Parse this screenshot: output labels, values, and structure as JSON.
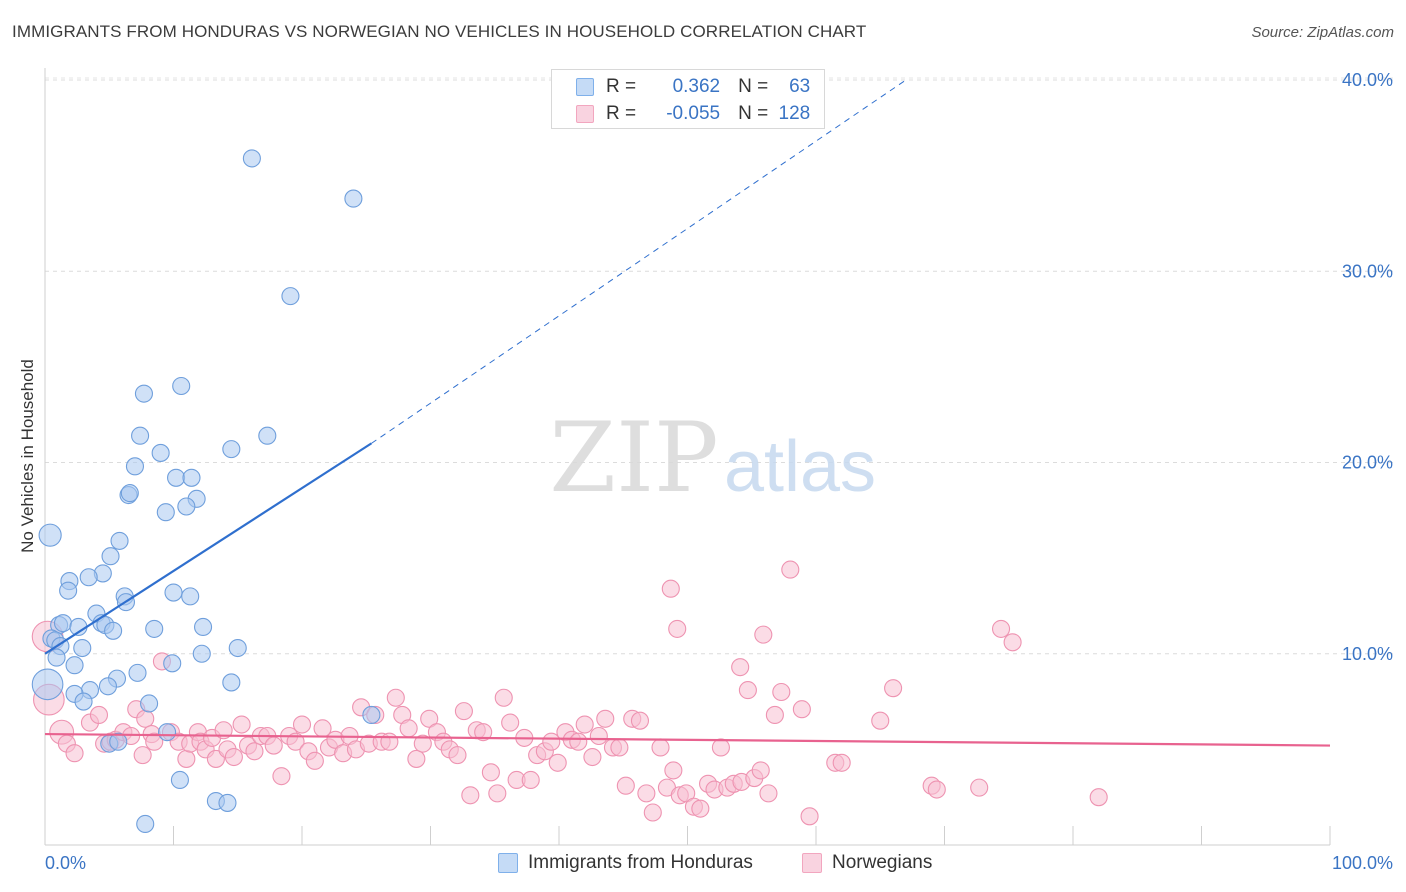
{
  "title": "IMMIGRANTS FROM HONDURAS VS NORWEGIAN NO VEHICLES IN HOUSEHOLD CORRELATION CHART",
  "source": "Source: ZipAtlas.com",
  "watermark": {
    "zip": "ZIP",
    "atlas": "atlas"
  },
  "legend_top": {
    "rows": [
      {
        "r_label": "R =",
        "r_value": "0.362",
        "n_label": "N =",
        "n_value": "63",
        "color": "#7fb0ea"
      },
      {
        "r_label": "R =",
        "r_value": "-0.055",
        "n_label": "N =",
        "n_value": "128",
        "color": "#f2a6bf"
      }
    ]
  },
  "legend_bottom": [
    {
      "label": "Immigrants from Honduras",
      "color": "#7fb0ea"
    },
    {
      "label": "Norwegians",
      "color": "#f2a6bf"
    }
  ],
  "chart_data": {
    "type": "scatter",
    "title": "IMMIGRANTS FROM HONDURAS VS NORWEGIAN NO VEHICLES IN HOUSEHOLD CORRELATION CHART",
    "xlabel": "",
    "ylabel": "No Vehicles in Household",
    "xlim": [
      0,
      100
    ],
    "ylim": [
      0,
      40
    ],
    "x_tick_labels": [
      "0.0%",
      "100.0%"
    ],
    "y_tick_labels": [
      "10.0%",
      "20.0%",
      "30.0%",
      "40.0%"
    ],
    "y_ticks": [
      10,
      20,
      30,
      40
    ],
    "grid": true,
    "legend_position": "bottom",
    "colors": {
      "blue_fill": "#a9c9f1",
      "blue_stroke": "#6f9fdc",
      "blue_line": "#2f6fce",
      "pink_fill": "#f7c0d1",
      "pink_stroke": "#ee93b1",
      "pink_line": "#e8628f"
    },
    "series": [
      {
        "name": "Immigrants from Honduras",
        "points": [
          [
            16.1,
            35.9
          ],
          [
            24.0,
            33.8
          ],
          [
            19.1,
            28.7
          ],
          [
            7.7,
            23.6
          ],
          [
            10.6,
            24.0
          ],
          [
            7.4,
            21.4
          ],
          [
            17.3,
            21.4
          ],
          [
            14.5,
            20.7
          ],
          [
            9.0,
            20.5
          ],
          [
            7.0,
            19.8
          ],
          [
            10.2,
            19.2
          ],
          [
            11.4,
            19.2
          ],
          [
            6.5,
            18.3
          ],
          [
            6.6,
            18.4
          ],
          [
            11.8,
            18.1
          ],
          [
            11.0,
            17.7
          ],
          [
            9.4,
            17.4
          ],
          [
            5.8,
            15.9
          ],
          [
            5.1,
            15.1
          ],
          [
            0.4,
            16.2
          ],
          [
            4.5,
            14.2
          ],
          [
            3.4,
            14.0
          ],
          [
            1.9,
            13.8
          ],
          [
            1.8,
            13.3
          ],
          [
            6.2,
            13.0
          ],
          [
            10.0,
            13.2
          ],
          [
            6.3,
            12.7
          ],
          [
            11.3,
            13.0
          ],
          [
            4.0,
            12.1
          ],
          [
            1.1,
            11.5
          ],
          [
            1.4,
            11.6
          ],
          [
            2.6,
            11.4
          ],
          [
            4.4,
            11.6
          ],
          [
            4.7,
            11.5
          ],
          [
            8.5,
            11.3
          ],
          [
            12.3,
            11.4
          ],
          [
            0.5,
            10.8
          ],
          [
            0.8,
            10.7
          ],
          [
            5.3,
            11.2
          ],
          [
            1.2,
            10.4
          ],
          [
            2.9,
            10.3
          ],
          [
            15.0,
            10.3
          ],
          [
            12.2,
            10.0
          ],
          [
            0.9,
            9.8
          ],
          [
            2.3,
            9.4
          ],
          [
            9.9,
            9.5
          ],
          [
            7.2,
            9.0
          ],
          [
            0.2,
            8.4
          ],
          [
            5.6,
            8.7
          ],
          [
            4.9,
            8.3
          ],
          [
            3.5,
            8.1
          ],
          [
            2.3,
            7.9
          ],
          [
            14.5,
            8.5
          ],
          [
            3.0,
            7.5
          ],
          [
            8.1,
            7.4
          ],
          [
            25.4,
            6.8
          ],
          [
            9.5,
            5.9
          ],
          [
            5.0,
            5.3
          ],
          [
            5.7,
            5.4
          ],
          [
            10.5,
            3.4
          ],
          [
            13.3,
            2.3
          ],
          [
            14.2,
            2.2
          ],
          [
            7.8,
            1.1
          ]
        ],
        "sizes": [
          1,
          1,
          1,
          1,
          1,
          1,
          1,
          1,
          1,
          1,
          1,
          1,
          1,
          1,
          1,
          1,
          1,
          1,
          1,
          1.3,
          1,
          1,
          1,
          1,
          1,
          1,
          1,
          1,
          1,
          1,
          1,
          1,
          1,
          1,
          1,
          1,
          1,
          1,
          1,
          1,
          1,
          1,
          1,
          1,
          1,
          1,
          1,
          1.8,
          1,
          1,
          1,
          1,
          1,
          1,
          1,
          1,
          1,
          1,
          1,
          1,
          1,
          1,
          1
        ],
        "trend": {
          "x": [
            0,
            25.4
          ],
          "y": [
            10.0,
            21.0
          ],
          "dashed_to": [
            67.0,
            40.0
          ]
        }
      },
      {
        "name": "Norwegians",
        "points": [
          [
            0.2,
            10.9
          ],
          [
            0.3,
            7.6
          ],
          [
            1.3,
            5.9
          ],
          [
            1.7,
            5.3
          ],
          [
            2.3,
            4.8
          ],
          [
            3.5,
            6.4
          ],
          [
            4.2,
            6.8
          ],
          [
            4.6,
            5.3
          ],
          [
            5.1,
            5.4
          ],
          [
            5.5,
            5.5
          ],
          [
            6.1,
            5.9
          ],
          [
            6.7,
            5.7
          ],
          [
            7.1,
            7.1
          ],
          [
            7.6,
            4.7
          ],
          [
            7.8,
            6.6
          ],
          [
            8.3,
            5.8
          ],
          [
            8.5,
            5.4
          ],
          [
            9.1,
            9.6
          ],
          [
            9.8,
            5.9
          ],
          [
            10.4,
            5.4
          ],
          [
            11.0,
            4.5
          ],
          [
            11.3,
            5.3
          ],
          [
            11.9,
            5.9
          ],
          [
            12.1,
            5.4
          ],
          [
            12.5,
            5.0
          ],
          [
            13.0,
            5.6
          ],
          [
            13.3,
            4.5
          ],
          [
            13.9,
            6.0
          ],
          [
            14.2,
            5.0
          ],
          [
            14.7,
            4.6
          ],
          [
            15.3,
            6.3
          ],
          [
            15.8,
            5.2
          ],
          [
            16.3,
            4.9
          ],
          [
            16.8,
            5.7
          ],
          [
            17.3,
            5.7
          ],
          [
            17.8,
            5.2
          ],
          [
            18.4,
            3.6
          ],
          [
            19.0,
            5.7
          ],
          [
            19.5,
            5.4
          ],
          [
            20.0,
            6.3
          ],
          [
            20.5,
            4.9
          ],
          [
            21.0,
            4.4
          ],
          [
            21.6,
            6.1
          ],
          [
            22.1,
            5.1
          ],
          [
            22.6,
            5.5
          ],
          [
            23.2,
            4.8
          ],
          [
            23.7,
            5.7
          ],
          [
            24.2,
            5.0
          ],
          [
            24.6,
            7.2
          ],
          [
            25.2,
            5.3
          ],
          [
            25.7,
            6.8
          ],
          [
            26.2,
            5.4
          ],
          [
            26.8,
            5.4
          ],
          [
            27.3,
            7.7
          ],
          [
            27.8,
            6.8
          ],
          [
            28.3,
            6.1
          ],
          [
            28.9,
            4.5
          ],
          [
            29.4,
            5.3
          ],
          [
            29.9,
            6.6
          ],
          [
            30.5,
            5.9
          ],
          [
            31.0,
            5.4
          ],
          [
            31.5,
            5.0
          ],
          [
            32.1,
            4.7
          ],
          [
            32.6,
            7.0
          ],
          [
            33.1,
            2.6
          ],
          [
            33.6,
            6.0
          ],
          [
            34.1,
            5.9
          ],
          [
            34.7,
            3.8
          ],
          [
            35.2,
            2.7
          ],
          [
            35.7,
            7.7
          ],
          [
            36.2,
            6.4
          ],
          [
            36.7,
            3.4
          ],
          [
            37.3,
            5.6
          ],
          [
            37.8,
            3.4
          ],
          [
            38.3,
            4.7
          ],
          [
            38.9,
            4.9
          ],
          [
            39.4,
            5.4
          ],
          [
            39.9,
            4.3
          ],
          [
            40.5,
            5.9
          ],
          [
            41.0,
            5.5
          ],
          [
            41.5,
            5.4
          ],
          [
            42.0,
            6.3
          ],
          [
            42.6,
            4.6
          ],
          [
            43.1,
            5.7
          ],
          [
            43.6,
            6.6
          ],
          [
            44.2,
            5.1
          ],
          [
            44.7,
            5.1
          ],
          [
            45.2,
            3.1
          ],
          [
            45.7,
            6.6
          ],
          [
            46.3,
            6.5
          ],
          [
            46.8,
            2.7
          ],
          [
            47.3,
            1.7
          ],
          [
            47.9,
            5.1
          ],
          [
            48.4,
            3.0
          ],
          [
            48.9,
            3.9
          ],
          [
            49.4,
            2.6
          ],
          [
            49.9,
            2.7
          ],
          [
            50.5,
            2.0
          ],
          [
            51.0,
            1.9
          ],
          [
            51.6,
            3.2
          ],
          [
            52.1,
            2.9
          ],
          [
            52.6,
            5.1
          ],
          [
            53.1,
            3.0
          ],
          [
            53.6,
            3.2
          ],
          [
            54.2,
            3.3
          ],
          [
            54.7,
            8.1
          ],
          [
            55.2,
            3.5
          ],
          [
            55.7,
            3.9
          ],
          [
            56.3,
            2.7
          ],
          [
            56.8,
            6.8
          ],
          [
            57.3,
            8.0
          ],
          [
            58.9,
            7.1
          ],
          [
            59.5,
            1.5
          ],
          [
            61.5,
            4.3
          ],
          [
            62.0,
            4.3
          ],
          [
            65.0,
            6.5
          ],
          [
            66.0,
            8.2
          ],
          [
            69.0,
            3.1
          ],
          [
            69.4,
            2.9
          ],
          [
            72.7,
            3.0
          ],
          [
            74.4,
            11.3
          ],
          [
            75.3,
            10.6
          ],
          [
            82.0,
            2.5
          ],
          [
            49.2,
            11.3
          ],
          [
            48.7,
            13.4
          ],
          [
            55.9,
            11.0
          ],
          [
            58.0,
            14.4
          ],
          [
            54.1,
            9.3
          ]
        ],
        "sizes": [
          1.8,
          1.8,
          1.4,
          1,
          1,
          1,
          1,
          1,
          1,
          1,
          1,
          1,
          1,
          1,
          1,
          1,
          1,
          1,
          1,
          1,
          1,
          1,
          1,
          1,
          1,
          1,
          1,
          1,
          1,
          1,
          1,
          1,
          1,
          1,
          1,
          1,
          1,
          1,
          1,
          1,
          1,
          1,
          1,
          1,
          1,
          1,
          1,
          1,
          1,
          1,
          1,
          1,
          1,
          1,
          1,
          1,
          1,
          1,
          1,
          1,
          1,
          1,
          1,
          1,
          1,
          1,
          1,
          1,
          1,
          1,
          1,
          1,
          1,
          1,
          1,
          1,
          1,
          1,
          1,
          1,
          1,
          1,
          1,
          1,
          1,
          1,
          1,
          1,
          1,
          1,
          1,
          1,
          1,
          1,
          1,
          1,
          1,
          1,
          1,
          1,
          1,
          1,
          1,
          1,
          1,
          1,
          1,
          1,
          1,
          1,
          1,
          1,
          1,
          1,
          1,
          1,
          1,
          1,
          1,
          1,
          1,
          1,
          1,
          1,
          1,
          1,
          1,
          1
        ],
        "trend": {
          "x": [
            0,
            100
          ],
          "y": [
            5.8,
            5.2
          ]
        }
      }
    ]
  }
}
